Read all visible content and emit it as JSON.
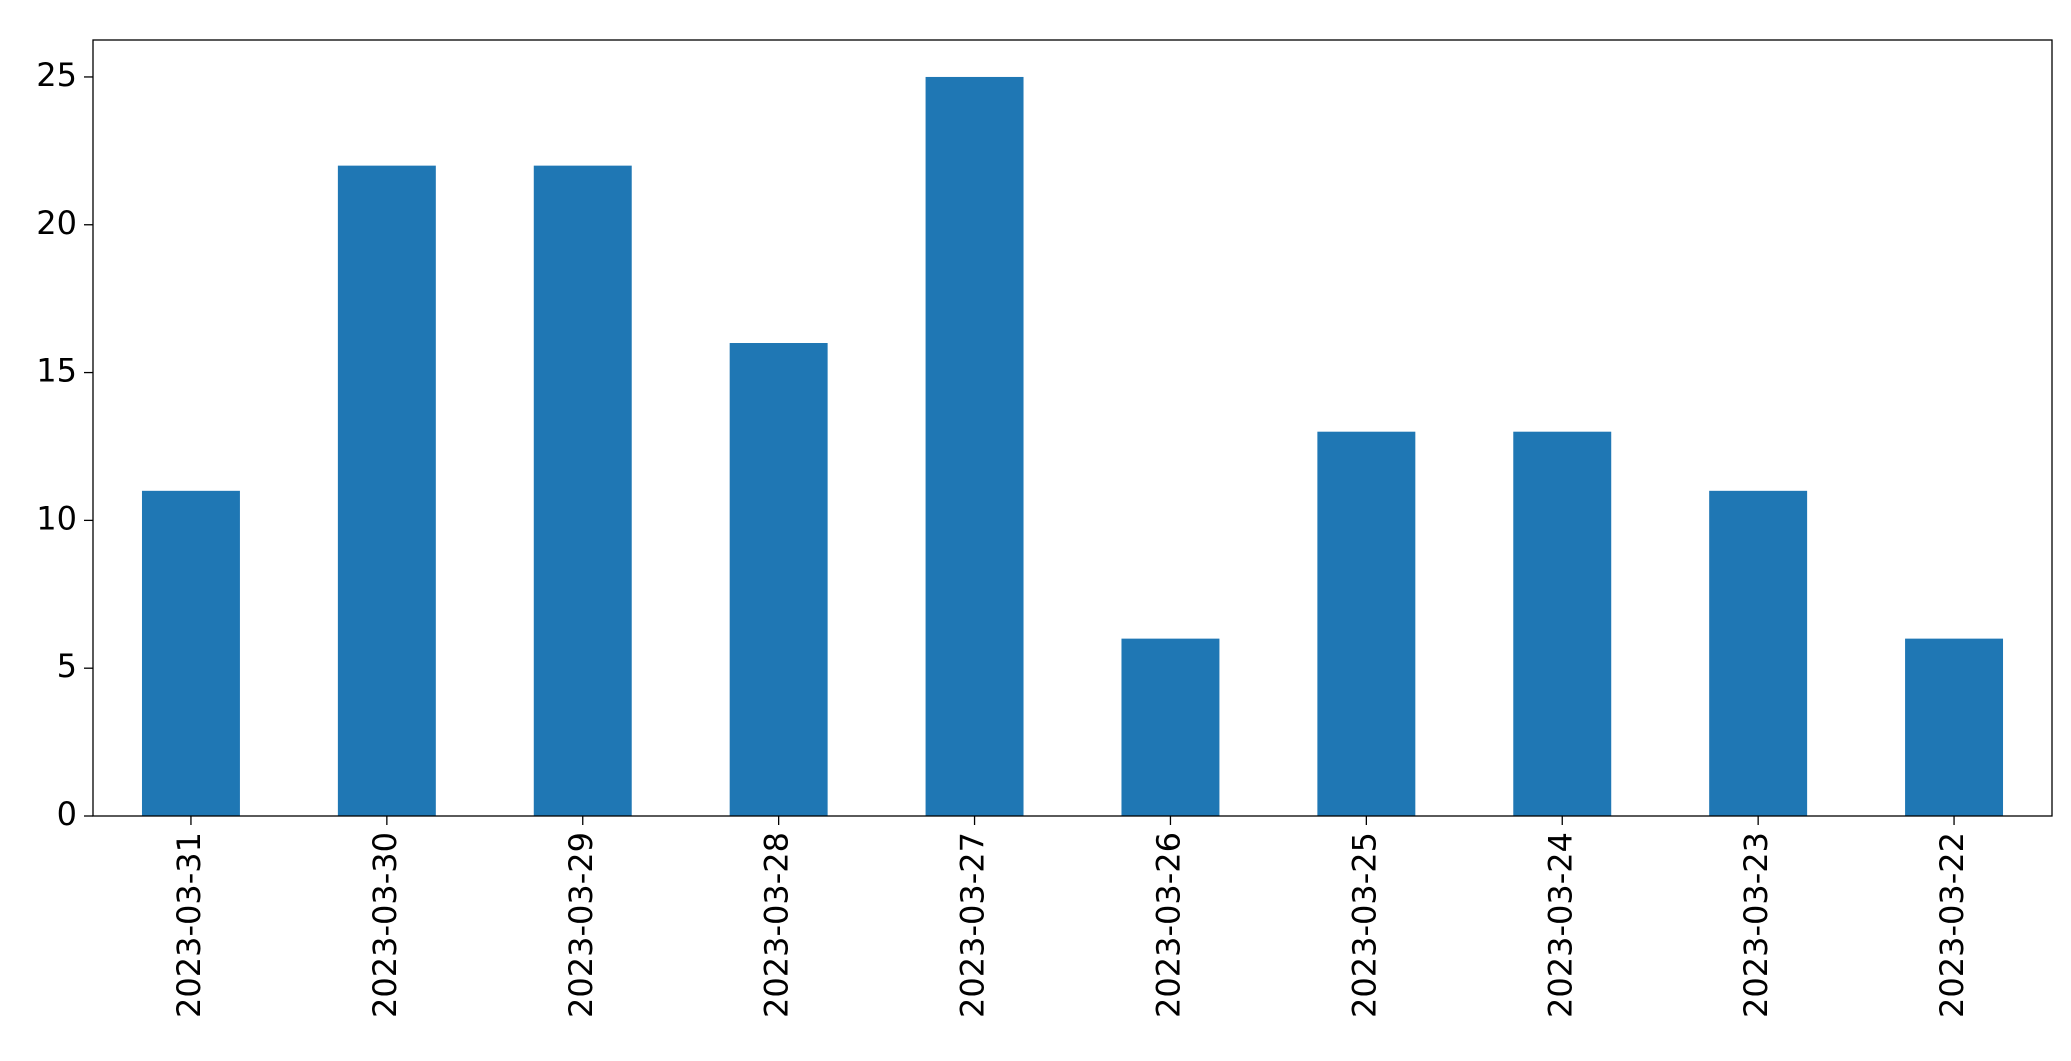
{
  "chart_data": {
    "type": "bar",
    "categories": [
      "2023-03-31",
      "2023-03-30",
      "2023-03-29",
      "2023-03-28",
      "2023-03-27",
      "2023-03-26",
      "2023-03-25",
      "2023-03-24",
      "2023-03-23",
      "2023-03-22"
    ],
    "values": [
      11,
      22,
      22,
      16,
      25,
      6,
      13,
      13,
      11,
      6
    ],
    "color": "#1f77b4",
    "ylim": [
      0,
      26.25
    ],
    "yticks": [
      0,
      5,
      10,
      15,
      20,
      25
    ],
    "grid": false
  }
}
